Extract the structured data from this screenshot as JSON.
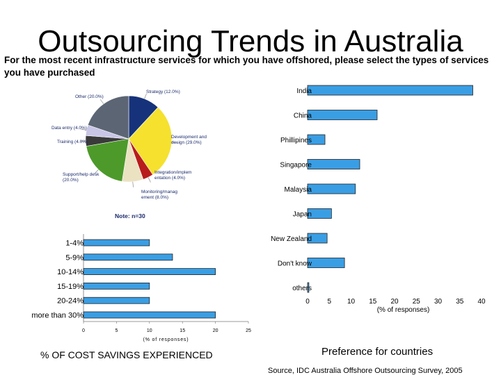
{
  "slide": {
    "title": "Outsourcing Trends in Australia",
    "question": "For the most recent infrastructure services for which you have offshored, please  select the types of services you have purchased",
    "caption_left": "% OF COST SAVINGS EXPERIENCED",
    "caption_right": "Preference for countries",
    "source": "Source, IDC Australia Offshore Outsourcing Survey, 2005"
  },
  "chart_data": [
    {
      "type": "pie",
      "title": "",
      "note": "Note: n=30",
      "slices": [
        {
          "label": "Strategy (12.0%)",
          "value": 12.0,
          "color": "#16327a"
        },
        {
          "label": "Development and design (29.0%)",
          "value": 29.0,
          "color": "#f5e12e"
        },
        {
          "label": "Integration/implem entation (4.0%)",
          "value": 4.0,
          "color": "#b81c1c"
        },
        {
          "label": "Monitoring/manag ement (8.0%)",
          "value": 8.0,
          "color": "#ebe2c2"
        },
        {
          "label": "Support/help desk (20.0%)",
          "value": 20.0,
          "color": "#4d9a2a"
        },
        {
          "label": "Training (4.0%)",
          "value": 4.0,
          "color": "#3a3a3a"
        },
        {
          "label": "Data entry (4.0%)",
          "value": 4.0,
          "color": "#c8c5e6"
        },
        {
          "label": "Other (20.0%)",
          "value": 20.0,
          "color": "#5c6573"
        }
      ]
    },
    {
      "type": "bar",
      "orientation": "horizontal",
      "title": "Preference for countries",
      "categories": [
        "India",
        "China",
        "Phillipines",
        "Singapore",
        "Malaysia",
        "Japan",
        "New Zealand",
        "Don't know",
        "others"
      ],
      "values": [
        38,
        16,
        4,
        12,
        11,
        5.5,
        4.5,
        8.5,
        0.3
      ],
      "xlabel": "(% of responses)",
      "xlim": [
        0,
        40
      ],
      "xticks": [
        "0",
        "5",
        "10",
        "15",
        "20",
        "25",
        "30",
        "35",
        "40"
      ],
      "bar_color": "#3a9ee4"
    },
    {
      "type": "bar",
      "orientation": "horizontal",
      "title": "% OF COST SAVINGS EXPERIENCED",
      "categories": [
        "1-4%",
        "5-9%",
        "10-14%",
        "15-19%",
        "20-24%",
        "more than 30%"
      ],
      "values": [
        10,
        13.5,
        20,
        10,
        10,
        20
      ],
      "xlabel": "(% of responses)",
      "xlim": [
        0,
        25
      ],
      "xticks": [
        "0",
        "5",
        "10",
        "15",
        "20",
        "25"
      ],
      "bar_color": "#3a9ee4"
    }
  ]
}
